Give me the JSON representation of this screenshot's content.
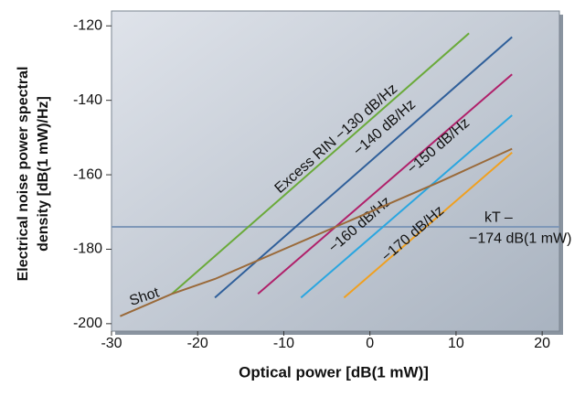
{
  "chart_data": {
    "type": "line",
    "xlabel": "Optical power [dB(1 mW)]",
    "ylabel": [
      "Electrical noise power spectral",
      "density [dB(1 mW)/Hz]"
    ],
    "xlim": [
      -30,
      22
    ],
    "ylim": [
      -202,
      -116
    ],
    "xticks": [
      -30,
      -20,
      -10,
      0,
      10,
      20
    ],
    "yticks": [
      -200,
      -180,
      -160,
      -140,
      -120
    ],
    "series": [
      {
        "name": "Excess RIN −130 dB/Hz",
        "color": "#6aaa3a",
        "x": [
          -23,
          11.5
        ],
        "values": [
          -192,
          -122
        ]
      },
      {
        "name": "−140 dB/Hz",
        "color": "#2f5f9a",
        "x": [
          -18,
          16.5
        ],
        "values": [
          -193,
          -123
        ]
      },
      {
        "name": "−150 dB/Hz",
        "color": "#b0206a",
        "x": [
          -13,
          16.5
        ],
        "values": [
          -192,
          -133
        ]
      },
      {
        "name": "−160 dB/Hz",
        "color": "#2aa6e0",
        "x": [
          -8,
          16.5
        ],
        "values": [
          -193,
          -144
        ]
      },
      {
        "name": "−170 dB/Hz",
        "color": "#f0a020",
        "x": [
          -3,
          16.5
        ],
        "values": [
          -193,
          -154
        ]
      },
      {
        "name": "Shot",
        "color": "#9a6a3a",
        "x": [
          -29,
          -23,
          -18,
          -3,
          8,
          16.5
        ],
        "values": [
          -198,
          -192,
          -188,
          -173,
          -162,
          -153
        ]
      }
    ],
    "reference_line": {
      "value": -174,
      "color": "#7f98b8",
      "labels": [
        "kT –",
        "−174 dB(1 mW)"
      ]
    }
  }
}
